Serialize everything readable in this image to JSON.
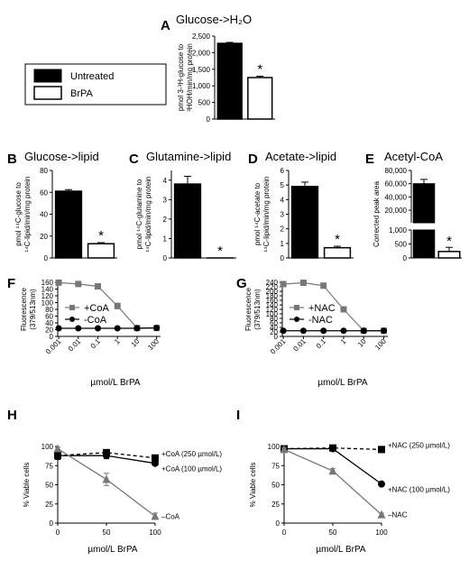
{
  "legend": {
    "items": [
      {
        "label": "Untreated",
        "color": "#000000"
      },
      {
        "label": "BrPA",
        "color": "#ffffff"
      }
    ]
  },
  "chart_data": [
    {
      "id": "A",
      "type": "bar",
      "title": "Glucose->H₂O",
      "ylabel_lines": [
        "pmol 3-³H-glucose to",
        "³HOH/min/mg protein"
      ],
      "ylim": [
        0,
        2500
      ],
      "yticks": [
        "0",
        "500",
        "1,000",
        "1,500",
        "2,000",
        "2,500"
      ],
      "categories": [
        "Untreated",
        "BrPA"
      ],
      "values": [
        2280,
        1250
      ],
      "errors": [
        30,
        40
      ],
      "significance": "*"
    },
    {
      "id": "B",
      "type": "bar",
      "title": "Glucose->lipid",
      "ylabel_lines": [
        "pmol ¹⁴C-glucose to",
        "¹⁴C-lipid/min/mg protein"
      ],
      "ylim": [
        0,
        80
      ],
      "yticks": [
        "0",
        "20",
        "40",
        "60",
        "80"
      ],
      "categories": [
        "Untreated",
        "BrPA"
      ],
      "values": [
        61,
        13
      ],
      "errors": [
        1.5,
        1
      ],
      "significance": "*"
    },
    {
      "id": "C",
      "type": "bar",
      "title": "Glutamine->lipid",
      "ylabel_lines": [
        "pmol ¹⁴C-glutamine to",
        "¹⁴C-lipid/min/mg protein"
      ],
      "ylim": [
        0,
        4.5
      ],
      "yticks": [
        "0",
        "1",
        "2",
        "3",
        "4"
      ],
      "categories": [
        "Untreated",
        "BrPA"
      ],
      "values": [
        3.8,
        0
      ],
      "errors": [
        0.4,
        0
      ],
      "significance": "*"
    },
    {
      "id": "D",
      "type": "bar",
      "title": "Acetate->lipid",
      "ylabel_lines": [
        "pmol ¹⁴C-acetate to",
        "¹⁴C-lipid/min/mg protein"
      ],
      "ylim": [
        0,
        6
      ],
      "yticks": [
        "0",
        "1",
        "2",
        "3",
        "4",
        "5",
        "6"
      ],
      "categories": [
        "Untreated",
        "BrPA"
      ],
      "values": [
        4.9,
        0.7
      ],
      "errors": [
        0.3,
        0.1
      ],
      "significance": "*"
    },
    {
      "id": "E",
      "type": "bar",
      "title": "Acetyl-CoA",
      "ylabel_lines": [
        "Corrected peak area"
      ],
      "axis_break": true,
      "ylim_lower": [
        0,
        1000
      ],
      "ylim_upper": [
        1000,
        80000
      ],
      "yticks_lower": [
        "0",
        "500",
        "1,000"
      ],
      "yticks_upper": [
        "20,000",
        "40,000",
        "60,000",
        "80,000"
      ],
      "categories": [
        "Untreated",
        "BrPA"
      ],
      "values": [
        60000,
        230
      ],
      "errors": [
        6500,
        150
      ],
      "significance": "*"
    },
    {
      "id": "F",
      "type": "line",
      "log_x": true,
      "ylabel_lines": [
        "Fluorescence",
        "(379/513nm)"
      ],
      "xlabel": "µmol/L BrPA",
      "xticks": [
        "0.001",
        "0.01",
        "0.1",
        "1",
        "10",
        "100"
      ],
      "ylim": [
        0,
        160
      ],
      "yticks": [
        "0",
        "20",
        "40",
        "60",
        "80",
        "100",
        "120",
        "140",
        "160"
      ],
      "legend_position": "center-left",
      "series": [
        {
          "name": "+CoA",
          "marker": "square",
          "color": "#777777",
          "x": [
            0.001,
            0.01,
            0.1,
            1,
            10,
            100
          ],
          "y": [
            159,
            155,
            148,
            90,
            25,
            25
          ],
          "err": [
            1,
            1,
            3,
            8,
            1,
            1
          ]
        },
        {
          "name": "-CoA",
          "marker": "circle",
          "color": "#000000",
          "x": [
            0.001,
            0.01,
            0.1,
            1,
            10,
            100
          ],
          "y": [
            24,
            24,
            24,
            24,
            24,
            25
          ],
          "err": [
            0,
            0,
            0,
            0,
            0,
            0
          ]
        }
      ]
    },
    {
      "id": "G",
      "type": "line",
      "log_x": true,
      "ylabel_lines": [
        "Fluorescence",
        "(379/513nm)"
      ],
      "xlabel": "µmol/L BrPA",
      "xticks": [
        "0.001",
        "0.01",
        "0.1",
        "1",
        "10",
        "100"
      ],
      "ylim": [
        0,
        240
      ],
      "yticks": [
        "0",
        "20",
        "40",
        "60",
        "80",
        "100",
        "120",
        "140",
        "160",
        "180",
        "200",
        "220",
        "240"
      ],
      "legend_position": "center-left",
      "series": [
        {
          "name": "+NAC",
          "marker": "square",
          "color": "#777777",
          "x": [
            0.001,
            0.01,
            0.1,
            1,
            10,
            100
          ],
          "y": [
            232,
            238,
            225,
            120,
            25,
            25
          ],
          "err": [
            10,
            4,
            4,
            12,
            1,
            1
          ]
        },
        {
          "name": "-NAC",
          "marker": "circle",
          "color": "#000000",
          "x": [
            0.001,
            0.01,
            0.1,
            1,
            10,
            100
          ],
          "y": [
            25,
            25,
            25,
            25,
            25,
            25
          ],
          "err": [
            0,
            0,
            0,
            0,
            0,
            0
          ]
        }
      ]
    },
    {
      "id": "H",
      "type": "line",
      "ylabel_lines": [
        "% Viable cells"
      ],
      "xlabel": "µmol/L BrPA",
      "xlim": [
        0,
        100
      ],
      "xticks": [
        "0",
        "50",
        "100"
      ],
      "ylim": [
        0,
        100
      ],
      "yticks": [
        "0",
        "25",
        "50",
        "75",
        "100"
      ],
      "series": [
        {
          "name": "+CoA (250 µmol/L)",
          "marker": "square",
          "color": "#000000",
          "dashed": true,
          "x": [
            0,
            50,
            100
          ],
          "y": [
            88,
            92,
            85
          ],
          "err": [
            4,
            2,
            2
          ]
        },
        {
          "name": "+CoA (100 µmol/L)",
          "marker": "circle",
          "color": "#000000",
          "dashed": false,
          "x": [
            0,
            50,
            100
          ],
          "y": [
            88,
            88,
            78
          ],
          "err": [
            5,
            4,
            2
          ]
        },
        {
          "name": "–CoA",
          "marker": "triangle",
          "color": "#777777",
          "dashed": false,
          "x": [
            0,
            50,
            100
          ],
          "y": [
            97,
            57,
            9
          ],
          "err": [
            2,
            8,
            4
          ]
        }
      ]
    },
    {
      "id": "I",
      "type": "line",
      "ylabel_lines": [
        "% Viable cells"
      ],
      "xlabel": "µmol/L BrPA",
      "xlim": [
        0,
        100
      ],
      "xticks": [
        "0",
        "50",
        "100"
      ],
      "ylim": [
        0,
        100
      ],
      "yticks": [
        "0",
        "25",
        "50",
        "75",
        "100"
      ],
      "series": [
        {
          "name": "+NAC (250 µmol/L)",
          "marker": "square",
          "color": "#000000",
          "dashed": true,
          "x": [
            0,
            50,
            100
          ],
          "y": [
            97,
            98,
            96
          ],
          "err": [
            2,
            3,
            2
          ]
        },
        {
          "name": "+NAC (100 µmol/L)",
          "marker": "circle",
          "color": "#000000",
          "dashed": false,
          "x": [
            0,
            50,
            100
          ],
          "y": [
            97,
            97,
            51
          ],
          "err": [
            2,
            2,
            2
          ]
        },
        {
          "name": "–NAC",
          "marker": "triangle",
          "color": "#777777",
          "dashed": false,
          "x": [
            0,
            50,
            100
          ],
          "y": [
            96,
            68,
            11
          ],
          "err": [
            2,
            3,
            2
          ]
        }
      ]
    }
  ]
}
